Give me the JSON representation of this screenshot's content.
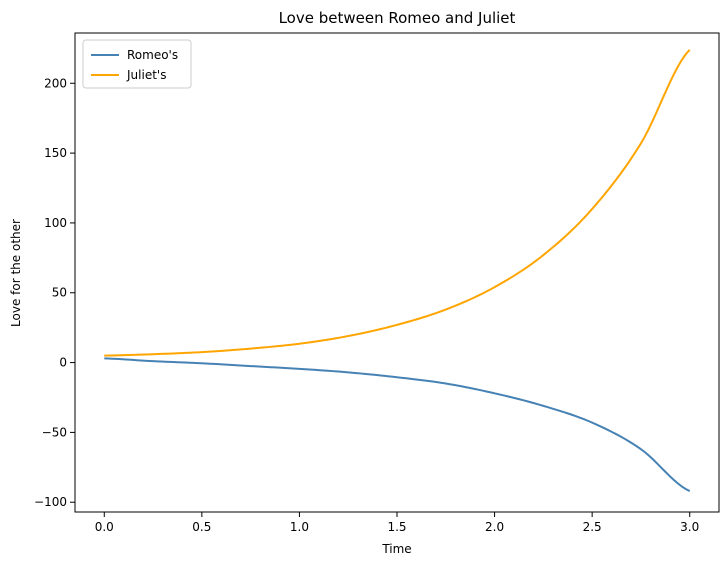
{
  "chart_data": {
    "type": "line",
    "title": "Love between Romeo and Juliet",
    "xlabel": "Time",
    "ylabel": "Love for the other",
    "xlim": [
      -0.15,
      3.15
    ],
    "ylim": [
      -107,
      236
    ],
    "x_ticks": [
      0.0,
      0.5,
      1.0,
      1.5,
      2.0,
      2.5,
      3.0
    ],
    "x_tick_labels": [
      "0.0",
      "0.5",
      "1.0",
      "1.5",
      "2.0",
      "2.5",
      "3.0"
    ],
    "y_ticks": [
      -100,
      -50,
      0,
      50,
      100,
      150,
      200
    ],
    "y_tick_labels": [
      "−100",
      "−50",
      "0",
      "50",
      "100",
      "150",
      "200"
    ],
    "grid": false,
    "legend_position": "top-left",
    "x": [
      0.0,
      0.25,
      0.5,
      0.75,
      1.0,
      1.25,
      1.5,
      1.75,
      2.0,
      2.25,
      2.5,
      2.75,
      3.0
    ],
    "series": [
      {
        "name": "Romeo's",
        "color": "#4682b4",
        "values": [
          3,
          1,
          -0.5,
          -2.5,
          -4.5,
          -7,
          -10.5,
          -15,
          -22,
          -31,
          -43,
          -62,
          -92
        ]
      },
      {
        "name": "Juliet's",
        "color": "#ffa500",
        "values": [
          5,
          6,
          7.5,
          10,
          13.5,
          19,
          27,
          38,
          54,
          77,
          110,
          157,
          224
        ]
      }
    ]
  }
}
